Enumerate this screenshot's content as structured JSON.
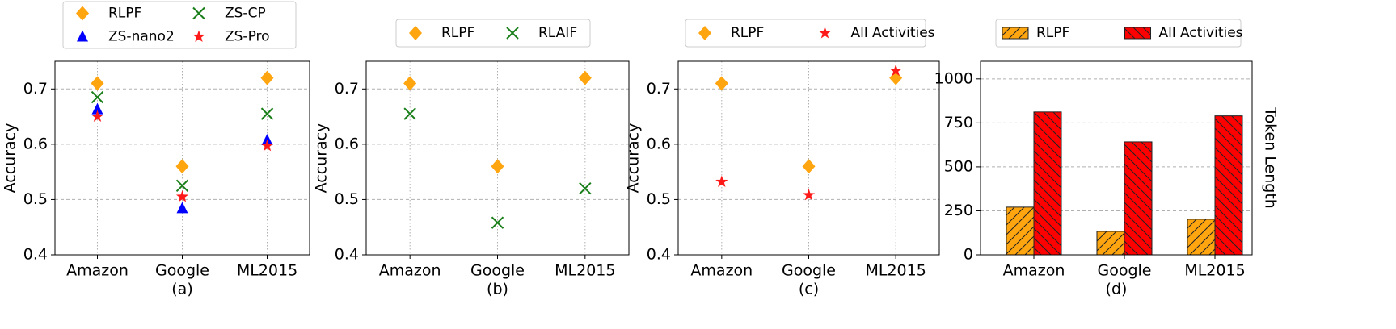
{
  "chart_data": [
    {
      "type": "scatter",
      "xlabel": "(a)",
      "ylabel": "Accuracy",
      "categories": [
        "Amazon",
        "Google",
        "ML2015"
      ],
      "series": [
        {
          "name": "RLPF",
          "color": "#ffa510",
          "marker": "diamond",
          "values": [
            0.71,
            0.56,
            0.72
          ]
        },
        {
          "name": "ZS-nano2",
          "color": "#0000ff",
          "marker": "triangle",
          "values": [
            0.663,
            0.484,
            0.607
          ]
        },
        {
          "name": "ZS-CP",
          "color": "#1a7f1a",
          "marker": "x",
          "values": [
            0.685,
            0.525,
            0.655
          ]
        },
        {
          "name": "ZS-Pro",
          "color": "#ff1a1a",
          "marker": "star",
          "values": [
            0.65,
            0.505,
            0.597
          ]
        }
      ],
      "ylim": [
        0.4,
        0.75
      ],
      "yticks": [
        0.4,
        0.5,
        0.6,
        0.7
      ],
      "grid": true,
      "legend": "top",
      "legend_ncol": 2
    },
    {
      "type": "scatter",
      "xlabel": "(b)",
      "ylabel": "Accuracy",
      "categories": [
        "Amazon",
        "Google",
        "ML2015"
      ],
      "series": [
        {
          "name": "RLPF",
          "color": "#ffa510",
          "marker": "diamond",
          "values": [
            0.71,
            0.56,
            0.72
          ]
        },
        {
          "name": "RLAIF",
          "color": "#1a7f1a",
          "marker": "x",
          "values": [
            0.655,
            0.458,
            0.52
          ]
        }
      ],
      "ylim": [
        0.4,
        0.75
      ],
      "yticks": [
        0.4,
        0.5,
        0.6,
        0.7
      ],
      "grid": true,
      "legend": "top",
      "legend_ncol": 2
    },
    {
      "type": "scatter",
      "xlabel": "(c)",
      "ylabel": "Accuracy",
      "categories": [
        "Amazon",
        "Google",
        "ML2015"
      ],
      "series": [
        {
          "name": "RLPF",
          "color": "#ffa510",
          "marker": "diamond",
          "values": [
            0.71,
            0.56,
            0.72
          ]
        },
        {
          "name": "All Activities",
          "color": "#ff1a1a",
          "marker": "star",
          "values": [
            0.532,
            0.508,
            0.733
          ]
        }
      ],
      "ylim": [
        0.4,
        0.75
      ],
      "yticks": [
        0.4,
        0.5,
        0.6,
        0.7
      ],
      "grid": true,
      "legend": "top",
      "legend_ncol": 2
    },
    {
      "type": "bar",
      "xlabel": "(d)",
      "ylabel": "Token Length",
      "ylabel_side": "right",
      "categories": [
        "Amazon",
        "Google",
        "ML2015"
      ],
      "series": [
        {
          "name": "RLPF",
          "color": "#ffa510",
          "hatch": "/",
          "values": [
            271,
            133,
            202
          ]
        },
        {
          "name": "All Activities",
          "color": "#ff0000",
          "hatch": "\\",
          "values": [
            812,
            642,
            790
          ]
        }
      ],
      "ylim": [
        0,
        1100
      ],
      "yticks": [
        0,
        250,
        500,
        750,
        1000
      ],
      "grid": true,
      "legend": "top",
      "legend_ncol": 2
    }
  ]
}
